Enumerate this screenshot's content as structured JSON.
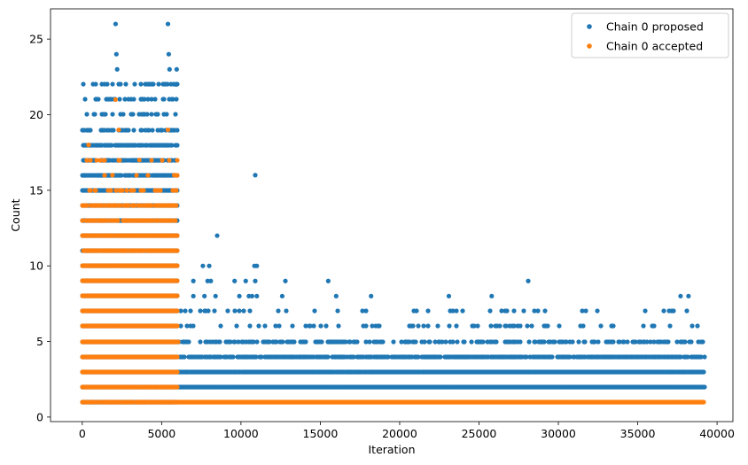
{
  "chart_data": {
    "type": "scatter",
    "title": "",
    "xlabel": "Iteration",
    "ylabel": "Count",
    "xlim": [
      -2000,
      41000
    ],
    "ylim": [
      -0.3,
      27
    ],
    "x_ticks": [
      0,
      5000,
      10000,
      15000,
      20000,
      25000,
      30000,
      35000,
      40000
    ],
    "y_ticks": [
      0,
      5,
      10,
      15,
      20,
      25
    ],
    "grid": false,
    "legend_position": "top-right",
    "series": [
      {
        "name": "Chain 0 proposed",
        "color": "#1f77b4",
        "bands": [
          {
            "x0": 0,
            "x1": 6000,
            "y": [
              1,
              2,
              3,
              4,
              5,
              6,
              7,
              8,
              9,
              10,
              11,
              12,
              13,
              14,
              15
            ],
            "density": 1.0
          },
          {
            "x0": 0,
            "x1": 6000,
            "y": [
              16,
              17,
              18
            ],
            "density": 0.5
          },
          {
            "x0": 0,
            "x1": 6000,
            "y": [
              19,
              20,
              21,
              22
            ],
            "density": 0.18
          },
          {
            "x0": 6000,
            "x1": 39200,
            "y": [
              2
            ],
            "density": 1.0
          },
          {
            "x0": 6000,
            "x1": 39200,
            "y": [
              3
            ],
            "density": 0.95
          },
          {
            "x0": 6000,
            "x1": 39200,
            "y": [
              4
            ],
            "density": 0.5
          },
          {
            "x0": 6000,
            "x1": 39200,
            "y": [
              5
            ],
            "density": 0.2
          },
          {
            "x0": 6000,
            "x1": 39200,
            "y": [
              6
            ],
            "density": 0.07
          },
          {
            "x0": 6000,
            "x1": 39200,
            "y": [
              7
            ],
            "density": 0.035
          }
        ],
        "points": [
          {
            "x": 2100,
            "y": 26
          },
          {
            "x": 5400,
            "y": 26
          },
          {
            "x": 2150,
            "y": 24
          },
          {
            "x": 5450,
            "y": 24
          },
          {
            "x": 2200,
            "y": 23
          },
          {
            "x": 5500,
            "y": 23
          },
          {
            "x": 5950,
            "y": 23
          },
          {
            "x": 5900,
            "y": 22
          },
          {
            "x": 10900,
            "y": 16
          },
          {
            "x": 8500,
            "y": 12
          },
          {
            "x": 7600,
            "y": 10
          },
          {
            "x": 8000,
            "y": 10
          },
          {
            "x": 10850,
            "y": 10
          },
          {
            "x": 11000,
            "y": 10
          },
          {
            "x": 7000,
            "y": 9
          },
          {
            "x": 7900,
            "y": 9
          },
          {
            "x": 8100,
            "y": 9
          },
          {
            "x": 9600,
            "y": 9
          },
          {
            "x": 10300,
            "y": 9
          },
          {
            "x": 10900,
            "y": 9
          },
          {
            "x": 12800,
            "y": 9
          },
          {
            "x": 15500,
            "y": 9
          },
          {
            "x": 28100,
            "y": 9
          },
          {
            "x": 7000,
            "y": 8
          },
          {
            "x": 7700,
            "y": 8
          },
          {
            "x": 8400,
            "y": 8
          },
          {
            "x": 9900,
            "y": 8
          },
          {
            "x": 10500,
            "y": 8
          },
          {
            "x": 10700,
            "y": 8
          },
          {
            "x": 11000,
            "y": 8
          },
          {
            "x": 12600,
            "y": 8
          },
          {
            "x": 16000,
            "y": 8
          },
          {
            "x": 18200,
            "y": 8
          },
          {
            "x": 23100,
            "y": 8
          },
          {
            "x": 25800,
            "y": 8
          },
          {
            "x": 37700,
            "y": 8
          },
          {
            "x": 38200,
            "y": 8
          }
        ]
      },
      {
        "name": "Chain 0 accepted",
        "color": "#ff7f0e",
        "bands": [
          {
            "x0": 0,
            "x1": 6000,
            "y": [
              3,
              4,
              5,
              6,
              7,
              8,
              9,
              10
            ],
            "density": 1.0
          },
          {
            "x0": 0,
            "x1": 6000,
            "y": [
              11,
              12
            ],
            "density": 0.7
          },
          {
            "x0": 0,
            "x1": 6000,
            "y": [
              13,
              14
            ],
            "density": 0.35
          },
          {
            "x0": 0,
            "x1": 6000,
            "y": [
              1,
              2
            ],
            "density": 0.55
          },
          {
            "x0": 0,
            "x1": 6000,
            "y": [
              15
            ],
            "density": 0.12
          },
          {
            "x0": 0,
            "x1": 6000,
            "y": [
              16,
              17
            ],
            "density": 0.04
          },
          {
            "x0": 6000,
            "x1": 39200,
            "y": [
              1
            ],
            "density": 1.0
          }
        ],
        "points": [
          {
            "x": 2100,
            "y": 21
          },
          {
            "x": 5400,
            "y": 19
          },
          {
            "x": 2300,
            "y": 19
          },
          {
            "x": 400,
            "y": 18
          },
          {
            "x": 1900,
            "y": 16
          },
          {
            "x": 3600,
            "y": 17
          },
          {
            "x": 5800,
            "y": 16
          }
        ]
      }
    ]
  }
}
